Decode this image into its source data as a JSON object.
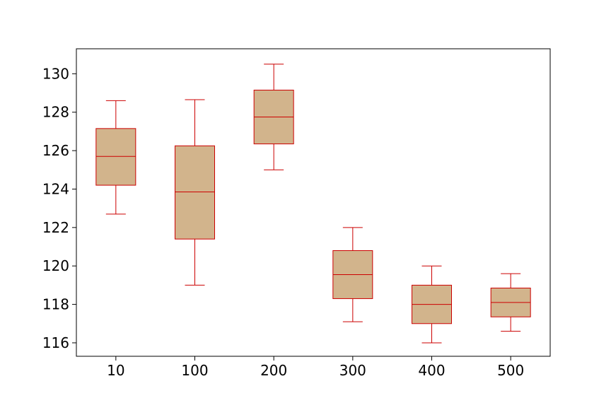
{
  "chart_data": {
    "type": "box",
    "categories": [
      "10",
      "100",
      "200",
      "300",
      "400",
      "500"
    ],
    "boxes": [
      {
        "category": "10",
        "whisker_low": 122.7,
        "q1": 124.2,
        "median": 125.7,
        "q3": 127.15,
        "whisker_high": 128.6
      },
      {
        "category": "100",
        "whisker_low": 119.0,
        "q1": 121.4,
        "median": 123.85,
        "q3": 126.25,
        "whisker_high": 128.65
      },
      {
        "category": "200",
        "whisker_low": 125.0,
        "q1": 126.35,
        "median": 127.75,
        "q3": 129.15,
        "whisker_high": 130.5
      },
      {
        "category": "300",
        "whisker_low": 117.1,
        "q1": 118.3,
        "median": 119.55,
        "q3": 120.8,
        "whisker_high": 122.0
      },
      {
        "category": "400",
        "whisker_low": 116.0,
        "q1": 117.0,
        "median": 118.0,
        "q3": 119.0,
        "whisker_high": 120.0
      },
      {
        "category": "500",
        "whisker_low": 116.6,
        "q1": 117.35,
        "median": 118.1,
        "q3": 118.85,
        "whisker_high": 119.6
      }
    ],
    "yticks": [
      116,
      118,
      120,
      122,
      124,
      126,
      128,
      130
    ],
    "ylim": [
      115.3,
      131.3
    ],
    "title": "",
    "xlabel": "",
    "ylabel": "",
    "grid": false,
    "colors": {
      "box_fill": "#d2b48c",
      "box_edge": "#cc0000",
      "axes": "#000000"
    }
  }
}
